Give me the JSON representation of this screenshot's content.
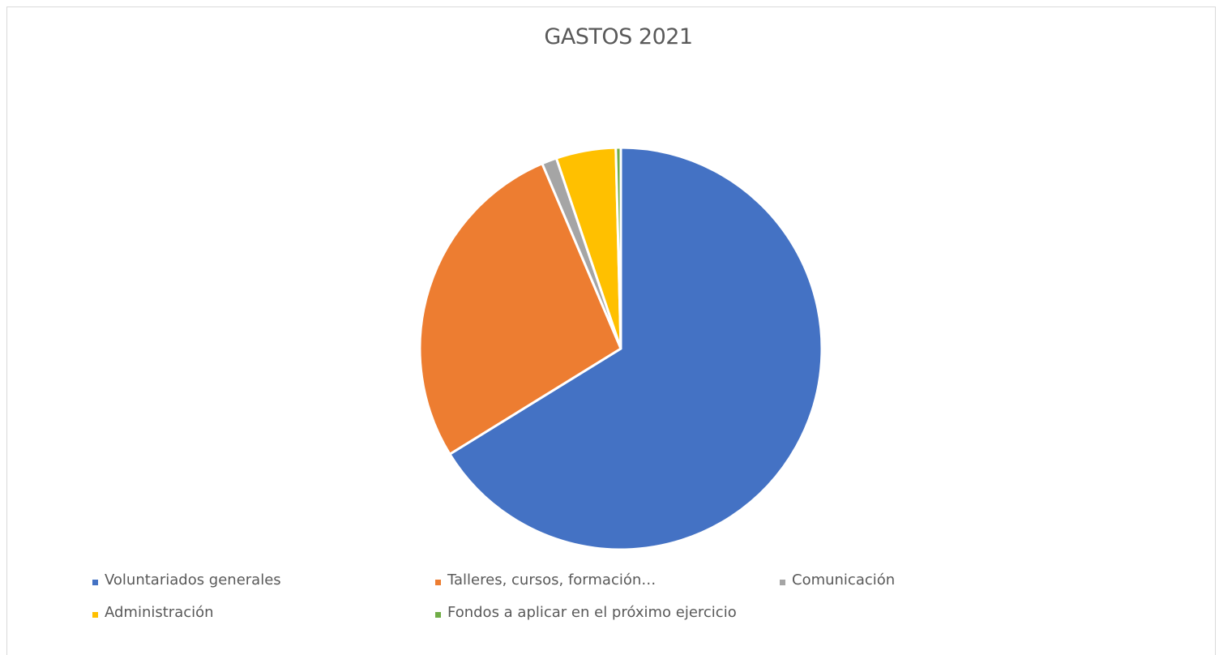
{
  "chart_data": {
    "type": "pie",
    "title": "GASTOS 2021",
    "legend_position": "bottom",
    "slices": [
      {
        "label": "Voluntariados generales",
        "value": 66.2,
        "color": "#4472C4"
      },
      {
        "label": "Talleres, cursos, formación…",
        "value": 27.4,
        "color": "#ED7D31"
      },
      {
        "label": "Comunicación",
        "value": 1.2,
        "color": "#A5A5A5"
      },
      {
        "label": "Administración",
        "value": 4.8,
        "color": "#FFC000"
      },
      {
        "label": "Fondos a aplicar en el próximo ejercicio",
        "value": 0.4,
        "color": "#70AD47"
      }
    ]
  }
}
